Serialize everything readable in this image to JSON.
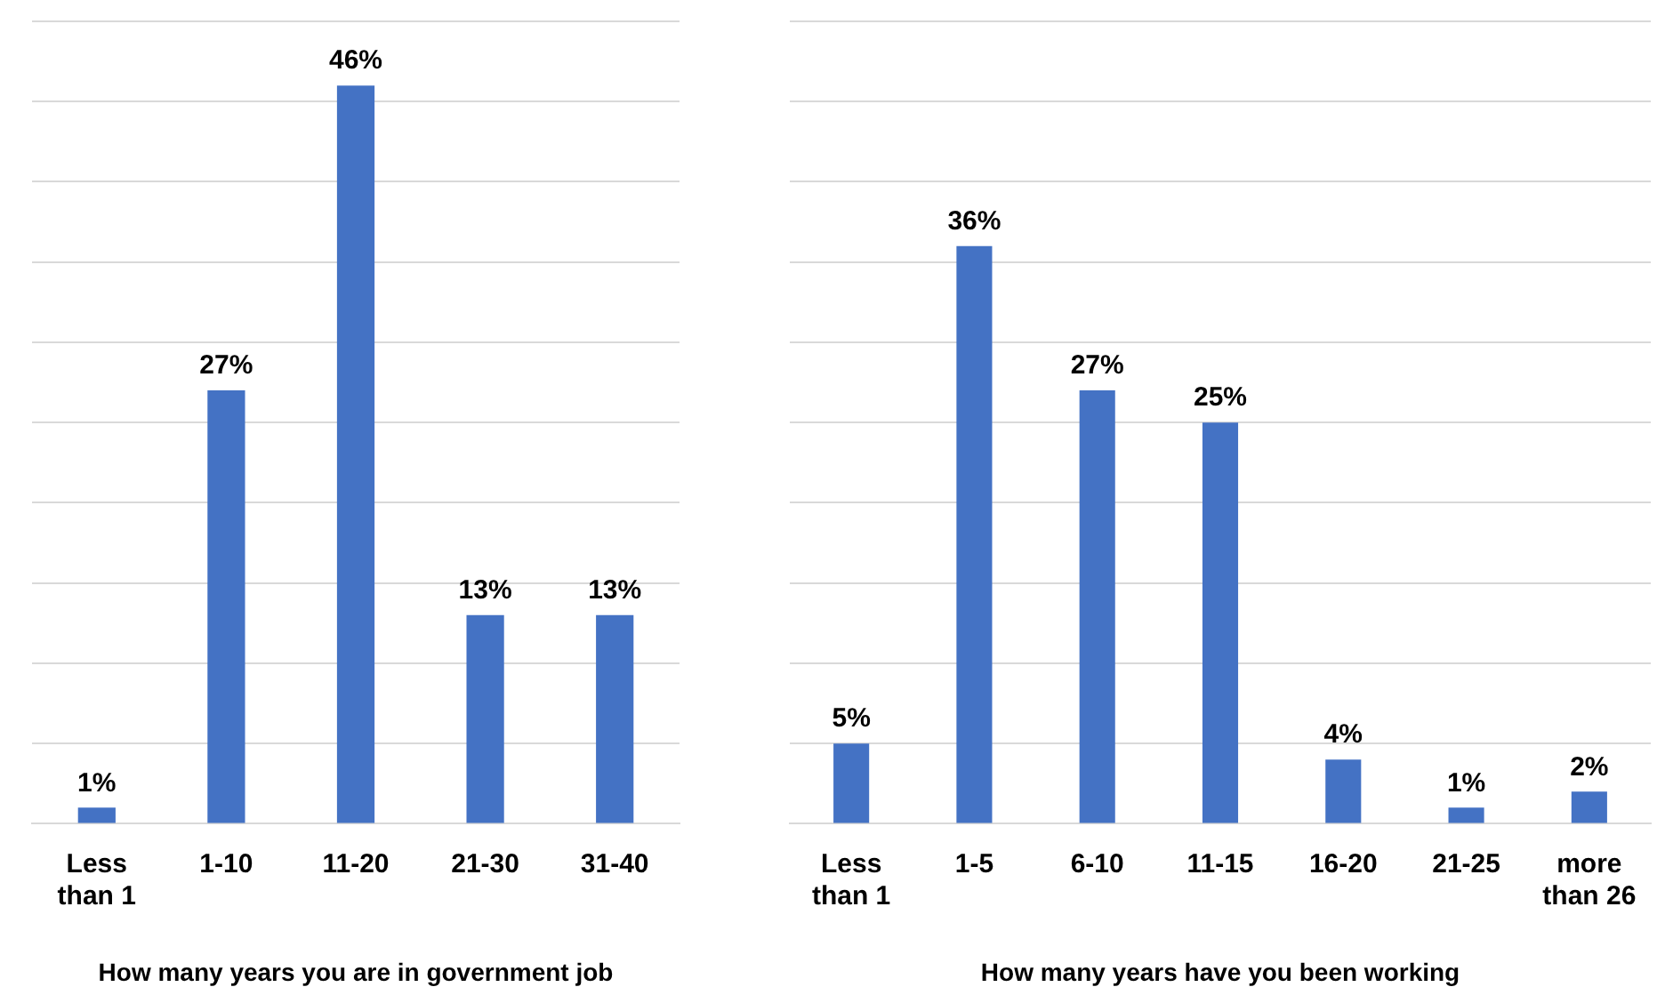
{
  "chart_data": [
    {
      "type": "bar",
      "categories": [
        "Less than 1",
        "1-10",
        "11-20",
        "21-30",
        "31-40"
      ],
      "values": [
        1,
        27,
        46,
        13,
        13
      ],
      "value_labels": [
        "1%",
        "27%",
        "46%",
        "13%",
        "13%"
      ],
      "color": "#4472c4",
      "xlabel": "How many years you are in government job",
      "ylim": [
        0,
        50
      ],
      "yticks": [
        {
          "value": 0,
          "label": null
        },
        {
          "value": 5,
          "label": null
        },
        {
          "value": 10,
          "label": null
        },
        {
          "value": 15,
          "label": null
        },
        {
          "value": 20,
          "label": null
        },
        {
          "value": 25,
          "label": null
        },
        {
          "value": 30,
          "label": null
        },
        {
          "value": 35,
          "label": null
        },
        {
          "value": 40,
          "label": null
        },
        {
          "value": 45,
          "label": null
        },
        {
          "value": 50,
          "label": null
        }
      ],
      "grid": "y",
      "tick_labels": "x",
      "legend": false
    },
    {
      "type": "bar",
      "categories": [
        "Less than 1",
        "1-5",
        "6-10",
        "11-15",
        "16-20",
        "21-25",
        "more than 26"
      ],
      "values": [
        5,
        36,
        27,
        25,
        4,
        1,
        2
      ],
      "value_labels": [
        "5%",
        "36%",
        "27%",
        "25%",
        "4%",
        "1%",
        "2%"
      ],
      "color": "#4472c4",
      "xlabel": "How many years have you been working",
      "ylim": [
        0,
        50
      ],
      "yticks": [
        {
          "value": 0,
          "label": null
        },
        {
          "value": 5,
          "label": null
        },
        {
          "value": 10,
          "label": null
        },
        {
          "value": 15,
          "label": null
        },
        {
          "value": 20,
          "label": null
        },
        {
          "value": 25,
          "label": null
        },
        {
          "value": 30,
          "label": null
        },
        {
          "value": 35,
          "label": null
        },
        {
          "value": 40,
          "label": null
        },
        {
          "value": 45,
          "label": null
        },
        {
          "value": 50,
          "label": null
        }
      ],
      "grid": "y",
      "tick_labels": "x",
      "legend": false
    }
  ]
}
